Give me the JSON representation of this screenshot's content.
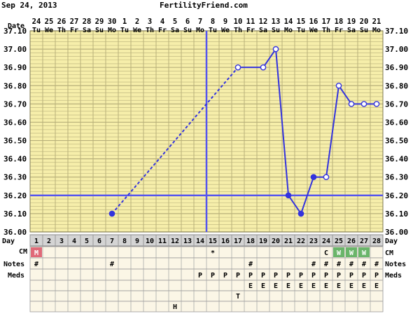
{
  "header": {
    "date": "Sep 24, 2013",
    "site": "FertilityFriend.com"
  },
  "labels": {
    "date": "Date",
    "day": "Day",
    "cm": "CM",
    "notes": "Notes",
    "meds": "Meds"
  },
  "colors": {
    "background": "#ffffff",
    "grid_bg": "#f6eeaa",
    "grid_line": "#b8b07a",
    "axis_text": "#000000",
    "temp_line": "#3333dd",
    "coverline": "#5555ee",
    "site_text": "#0000cc",
    "day_bg": "#d4d4d4",
    "menstruation": "#e06a78",
    "egg_white": "#6ab56a",
    "row_bg": "#fbf6e6"
  },
  "chart_data": {
    "type": "line",
    "title": "",
    "ylabel": "",
    "ylim": [
      36.0,
      37.1
    ],
    "yticks": [
      "37.10",
      "37.00",
      "36.90",
      "36.80",
      "36.70",
      "36.60",
      "36.50",
      "36.40",
      "36.30",
      "36.20",
      "36.10",
      "36.00"
    ],
    "date_numbers": [
      "24",
      "25",
      "26",
      "27",
      "28",
      "29",
      "30",
      "1",
      "2",
      "3",
      "4",
      "5",
      "6",
      "7",
      "8",
      "9",
      "10",
      "11",
      "12",
      "13",
      "14",
      "15",
      "16",
      "17",
      "18",
      "19",
      "20",
      "21"
    ],
    "weekdays": [
      "Tu",
      "We",
      "Th",
      "Fr",
      "Sa",
      "Su",
      "Mo",
      "Tu",
      "We",
      "Th",
      "Fr",
      "Sa",
      "Su",
      "Mo",
      "Tu",
      "We",
      "Th",
      "Fr",
      "Sa",
      "Su",
      "Mo",
      "Tu",
      "We",
      "Th",
      "Fr",
      "Sa",
      "Su",
      "Mo"
    ],
    "cycle_days": [
      "1",
      "2",
      "3",
      "4",
      "5",
      "6",
      "7",
      "8",
      "9",
      "10",
      "11",
      "12",
      "13",
      "14",
      "15",
      "16",
      "17",
      "18",
      "19",
      "20",
      "21",
      "22",
      "23",
      "24",
      "25",
      "26",
      "27",
      "28"
    ],
    "temperatures": [
      {
        "day": 7,
        "temp": 36.1,
        "marker": "filled"
      },
      {
        "day": 17,
        "temp": 36.9,
        "marker": "open"
      },
      {
        "day": 19,
        "temp": 36.9,
        "marker": "open"
      },
      {
        "day": 20,
        "temp": 37.0,
        "marker": "open"
      },
      {
        "day": 21,
        "temp": 36.2,
        "marker": "filled"
      },
      {
        "day": 22,
        "temp": 36.1,
        "marker": "filled"
      },
      {
        "day": 23,
        "temp": 36.3,
        "marker": "filled"
      },
      {
        "day": 24,
        "temp": 36.3,
        "marker": "open"
      },
      {
        "day": 25,
        "temp": 36.8,
        "marker": "open"
      },
      {
        "day": 26,
        "temp": 36.7,
        "marker": "open"
      },
      {
        "day": 27,
        "temp": 36.7,
        "marker": "open"
      },
      {
        "day": 28,
        "temp": 36.7,
        "marker": "open"
      }
    ],
    "dashed_segment_days": [
      7,
      17
    ],
    "coverline_temp": 36.2,
    "ovulation_line_after_day": 14,
    "cm_row": [
      {
        "day": 1,
        "value": "M",
        "type": "menstruation"
      },
      {
        "day": 15,
        "value": "*",
        "type": "plain"
      },
      {
        "day": 24,
        "value": "C",
        "type": "plain"
      },
      {
        "day": 25,
        "value": "W",
        "type": "egg_white"
      },
      {
        "day": 26,
        "value": "W",
        "type": "egg_white"
      },
      {
        "day": 27,
        "value": "W",
        "type": "egg_white"
      }
    ],
    "notes_row": [
      {
        "day": 1,
        "value": "#"
      },
      {
        "day": 7,
        "value": "#"
      },
      {
        "day": 18,
        "value": "#"
      },
      {
        "day": 23,
        "value": "#"
      },
      {
        "day": 24,
        "value": "#"
      },
      {
        "day": 25,
        "value": "#"
      },
      {
        "day": 26,
        "value": "#"
      },
      {
        "day": 27,
        "value": "#"
      },
      {
        "day": 28,
        "value": "#"
      }
    ],
    "meds_row1": [
      {
        "day": 14,
        "value": "P"
      },
      {
        "day": 15,
        "value": "P"
      },
      {
        "day": 16,
        "value": "P"
      },
      {
        "day": 17,
        "value": "P"
      },
      {
        "day": 18,
        "value": "P"
      },
      {
        "day": 19,
        "value": "P"
      },
      {
        "day": 20,
        "value": "P"
      },
      {
        "day": 21,
        "value": "P"
      },
      {
        "day": 22,
        "value": "P"
      },
      {
        "day": 23,
        "value": "P"
      },
      {
        "day": 24,
        "value": "P"
      },
      {
        "day": 25,
        "value": "P"
      },
      {
        "day": 26,
        "value": "P"
      },
      {
        "day": 27,
        "value": "P"
      },
      {
        "day": 28,
        "value": "P"
      }
    ],
    "meds_row2": [
      {
        "day": 18,
        "value": "E"
      },
      {
        "day": 19,
        "value": "E"
      },
      {
        "day": 20,
        "value": "E"
      },
      {
        "day": 21,
        "value": "E"
      },
      {
        "day": 22,
        "value": "E"
      },
      {
        "day": 23,
        "value": "E"
      },
      {
        "day": 24,
        "value": "E"
      },
      {
        "day": 25,
        "value": "E"
      },
      {
        "day": 26,
        "value": "E"
      },
      {
        "day": 27,
        "value": "E"
      },
      {
        "day": 28,
        "value": "E"
      }
    ],
    "extra_row1": [
      {
        "day": 17,
        "value": "T"
      }
    ],
    "extra_row2": [
      {
        "day": 12,
        "value": "H"
      }
    ]
  }
}
